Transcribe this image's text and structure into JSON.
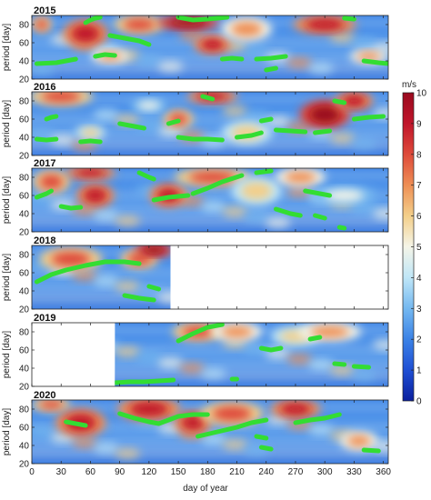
{
  "chart_data": {
    "type": "heatmap",
    "xlabel": "day of year",
    "ylabel": "period [day]",
    "xlim": [
      0,
      365
    ],
    "ylim": [
      20,
      90
    ],
    "xticks": [
      "0",
      "30",
      "60",
      "90",
      "120",
      "150",
      "180",
      "210",
      "240",
      "270",
      "300",
      "330",
      "360"
    ],
    "yticks": [
      "20",
      "40",
      "60",
      "80"
    ],
    "colorbar": {
      "unit": "m/s",
      "range": [
        0,
        10
      ],
      "ticks": [
        "0",
        "1",
        "2",
        "3",
        "4",
        "5",
        "6",
        "7",
        "8",
        "9",
        "10"
      ],
      "colors": [
        "#0a1f9e",
        "#1f4fd4",
        "#3b82e6",
        "#74b8f0",
        "#bfe6f7",
        "#f5f5e8",
        "#f3cf8a",
        "#ee8f55",
        "#de4a3a",
        "#c0152b",
        "#9a0a1e"
      ]
    },
    "ridge_color": "#33dd33",
    "panels": [
      {
        "year": "2015",
        "coverage": [
          0,
          365
        ],
        "blobs": [
          [
            10,
            80,
            8,
            7,
            8
          ],
          [
            55,
            70,
            18,
            12,
            9
          ],
          [
            110,
            80,
            20,
            8,
            8
          ],
          [
            160,
            82,
            25,
            6,
            10
          ],
          [
            185,
            58,
            15,
            8,
            9
          ],
          [
            220,
            75,
            20,
            10,
            7
          ],
          [
            300,
            80,
            25,
            8,
            9
          ],
          [
            345,
            45,
            15,
            6,
            7
          ],
          [
            80,
            45,
            15,
            6,
            7
          ]
        ],
        "ridges": [
          [
            [
              5,
              37
            ],
            [
              25,
              38
            ],
            [
              45,
              42
            ]
          ],
          [
            [
              55,
              82
            ],
            [
              60,
              85
            ],
            [
              65,
              87
            ],
            [
              70,
              88
            ]
          ],
          [
            [
              80,
              68
            ],
            [
              95,
              65
            ],
            [
              110,
              62
            ],
            [
              120,
              58
            ]
          ],
          [
            [
              65,
              45
            ],
            [
              75,
              47
            ],
            [
              85,
              46
            ]
          ],
          [
            [
              150,
              88
            ],
            [
              165,
              85
            ],
            [
              180,
              86
            ],
            [
              200,
              88
            ]
          ],
          [
            [
              195,
              42
            ],
            [
              205,
              43
            ],
            [
              215,
              42
            ]
          ],
          [
            [
              230,
              42
            ],
            [
              245,
              43
            ],
            [
              260,
              45
            ]
          ],
          [
            [
              240,
              30
            ],
            [
              250,
              32
            ]
          ],
          [
            [
              320,
              87
            ],
            [
              330,
              86
            ]
          ],
          [
            [
              340,
              40
            ],
            [
              355,
              38
            ],
            [
              365,
              37
            ]
          ]
        ]
      },
      {
        "year": "2016",
        "coverage": [
          0,
          365
        ],
        "blobs": [
          [
            30,
            85,
            25,
            8,
            8
          ],
          [
            60,
            45,
            12,
            6,
            6
          ],
          [
            150,
            60,
            12,
            8,
            8
          ],
          [
            185,
            85,
            20,
            6,
            9
          ],
          [
            220,
            45,
            20,
            10,
            6
          ],
          [
            300,
            65,
            20,
            12,
            10
          ],
          [
            330,
            80,
            15,
            8,
            9
          ],
          [
            120,
            75,
            15,
            6,
            5
          ]
        ],
        "ridges": [
          [
            [
              5,
              38
            ],
            [
              15,
              37
            ],
            [
              25,
              38
            ]
          ],
          [
            [
              15,
              60
            ],
            [
              20,
              62
            ],
            [
              25,
              63
            ]
          ],
          [
            [
              50,
              35
            ],
            [
              60,
              36
            ],
            [
              70,
              35
            ]
          ],
          [
            [
              90,
              55
            ],
            [
              105,
              52
            ],
            [
              115,
              50
            ]
          ],
          [
            [
              140,
              55
            ],
            [
              150,
              58
            ]
          ],
          [
            [
              150,
              40
            ],
            [
              165,
              38
            ],
            [
              180,
              38
            ],
            [
              195,
              37
            ]
          ],
          [
            [
              175,
              85
            ],
            [
              185,
              82
            ]
          ],
          [
            [
              210,
              40
            ],
            [
              225,
              42
            ],
            [
              235,
              45
            ]
          ],
          [
            [
              235,
              58
            ],
            [
              245,
              60
            ]
          ],
          [
            [
              250,
              48
            ],
            [
              265,
              47
            ],
            [
              280,
              46
            ]
          ],
          [
            [
              290,
              45
            ],
            [
              305,
              47
            ]
          ],
          [
            [
              310,
              80
            ],
            [
              320,
              78
            ]
          ],
          [
            [
              330,
              60
            ],
            [
              345,
              62
            ],
            [
              360,
              63
            ]
          ]
        ]
      },
      {
        "year": "2017",
        "coverage": [
          0,
          365
        ],
        "blobs": [
          [
            20,
            75,
            15,
            10,
            8
          ],
          [
            60,
            85,
            20,
            6,
            9
          ],
          [
            65,
            60,
            15,
            10,
            9
          ],
          [
            140,
            60,
            15,
            10,
            9
          ],
          [
            185,
            80,
            30,
            8,
            8
          ],
          [
            230,
            65,
            20,
            12,
            6
          ],
          [
            275,
            80,
            20,
            8,
            7
          ],
          [
            320,
            60,
            25,
            8,
            5
          ]
        ],
        "ridges": [
          [
            [
              5,
              58
            ],
            [
              15,
              62
            ],
            [
              20,
              65
            ]
          ],
          [
            [
              30,
              48
            ],
            [
              40,
              46
            ],
            [
              50,
              47
            ]
          ],
          [
            [
              110,
              85
            ],
            [
              120,
              80
            ],
            [
              125,
              78
            ]
          ],
          [
            [
              125,
              55
            ],
            [
              140,
              58
            ],
            [
              160,
              60
            ]
          ],
          [
            [
              165,
              62
            ],
            [
              180,
              68
            ],
            [
              195,
              75
            ],
            [
              215,
              82
            ]
          ],
          [
            [
              230,
              85
            ],
            [
              245,
              87
            ]
          ],
          [
            [
              250,
              45
            ],
            [
              265,
              40
            ],
            [
              275,
              38
            ]
          ],
          [
            [
              280,
              65
            ],
            [
              295,
              62
            ],
            [
              305,
              60
            ]
          ],
          [
            [
              290,
              38
            ],
            [
              300,
              35
            ]
          ],
          [
            [
              315,
              25
            ],
            [
              320,
              24
            ]
          ]
        ]
      },
      {
        "year": "2018",
        "coverage": [
          0,
          142
        ],
        "blobs": [
          [
            40,
            75,
            25,
            10,
            8
          ],
          [
            110,
            75,
            15,
            8,
            8
          ],
          [
            125,
            85,
            15,
            6,
            10
          ]
        ],
        "ridges": [
          [
            [
              5,
              50
            ],
            [
              20,
              58
            ],
            [
              35,
              63
            ],
            [
              55,
              68
            ],
            [
              75,
              72
            ],
            [
              95,
              72
            ],
            [
              110,
              70
            ]
          ],
          [
            [
              95,
              35
            ],
            [
              110,
              32
            ],
            [
              125,
              30
            ]
          ],
          [
            [
              120,
              45
            ],
            [
              130,
              42
            ]
          ]
        ]
      },
      {
        "year": "2019",
        "coverage": [
          85,
          365
        ],
        "blobs": [
          [
            170,
            80,
            20,
            8,
            8
          ],
          [
            210,
            80,
            20,
            8,
            7
          ],
          [
            270,
            75,
            20,
            8,
            6
          ],
          [
            305,
            80,
            25,
            8,
            7
          ]
        ],
        "ridges": [
          [
            [
              85,
              24
            ],
            [
              100,
              25
            ],
            [
              115,
              25
            ],
            [
              130,
              26
            ],
            [
              145,
              27
            ]
          ],
          [
            [
              150,
              70
            ],
            [
              165,
              78
            ],
            [
              180,
              85
            ],
            [
              195,
              88
            ]
          ],
          [
            [
              205,
              28
            ],
            [
              210,
              28
            ]
          ],
          [
            [
              235,
              62
            ],
            [
              245,
              60
            ],
            [
              255,
              62
            ]
          ],
          [
            [
              285,
              72
            ],
            [
              295,
              74
            ]
          ],
          [
            [
              310,
              45
            ],
            [
              320,
              44
            ]
          ],
          [
            [
              330,
              42
            ],
            [
              345,
              41
            ]
          ]
        ]
      },
      {
        "year": "2020",
        "coverage": [
          0,
          365
        ],
        "blobs": [
          [
            20,
            85,
            15,
            6,
            8
          ],
          [
            50,
            65,
            20,
            12,
            9
          ],
          [
            120,
            80,
            25,
            10,
            9
          ],
          [
            165,
            65,
            15,
            10,
            9
          ],
          [
            205,
            75,
            25,
            10,
            8
          ],
          [
            270,
            80,
            20,
            8,
            9
          ],
          [
            335,
            45,
            15,
            8,
            7
          ]
        ],
        "ridges": [
          [
            [
              35,
              66
            ],
            [
              45,
              64
            ],
            [
              55,
              62
            ]
          ],
          [
            [
              90,
              75
            ],
            [
              105,
              70
            ],
            [
              120,
              66
            ],
            [
              130,
              64
            ],
            [
              140,
              68
            ],
            [
              150,
              72
            ],
            [
              165,
              74
            ],
            [
              180,
              74
            ]
          ],
          [
            [
              170,
              50
            ],
            [
              190,
              55
            ],
            [
              210,
              60
            ],
            [
              225,
              65
            ],
            [
              240,
              68
            ]
          ],
          [
            [
              230,
              50
            ],
            [
              240,
              48
            ]
          ],
          [
            [
              235,
              38
            ],
            [
              245,
              36
            ]
          ],
          [
            [
              270,
              65
            ],
            [
              285,
              68
            ],
            [
              300,
              70
            ],
            [
              315,
              74
            ]
          ],
          [
            [
              340,
              35
            ],
            [
              355,
              34
            ]
          ]
        ]
      }
    ]
  }
}
